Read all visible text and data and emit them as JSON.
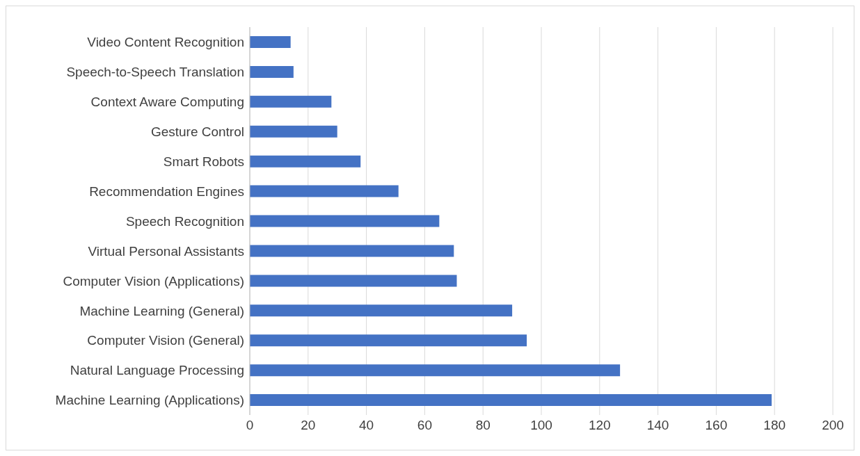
{
  "chart_data": {
    "type": "bar",
    "orientation": "horizontal",
    "categories": [
      "Video Content Recognition",
      "Speech-to-Speech Translation",
      "Context Aware Computing",
      "Gesture Control",
      "Smart Robots",
      "Recommendation Engines",
      "Speech Recognition",
      "Virtual Personal Assistants",
      "Computer Vision (Applications)",
      "Machine Learning (General)",
      "Computer Vision (General)",
      "Natural Language Processing",
      "Machine Learning (Applications)"
    ],
    "values": [
      14,
      15,
      28,
      30,
      38,
      51,
      65,
      70,
      71,
      90,
      95,
      127,
      179
    ],
    "color": "#4472c4",
    "xlim": [
      0,
      200
    ],
    "xticks": [
      0,
      20,
      40,
      60,
      80,
      100,
      120,
      140,
      160,
      180,
      200
    ],
    "grid": "x"
  }
}
